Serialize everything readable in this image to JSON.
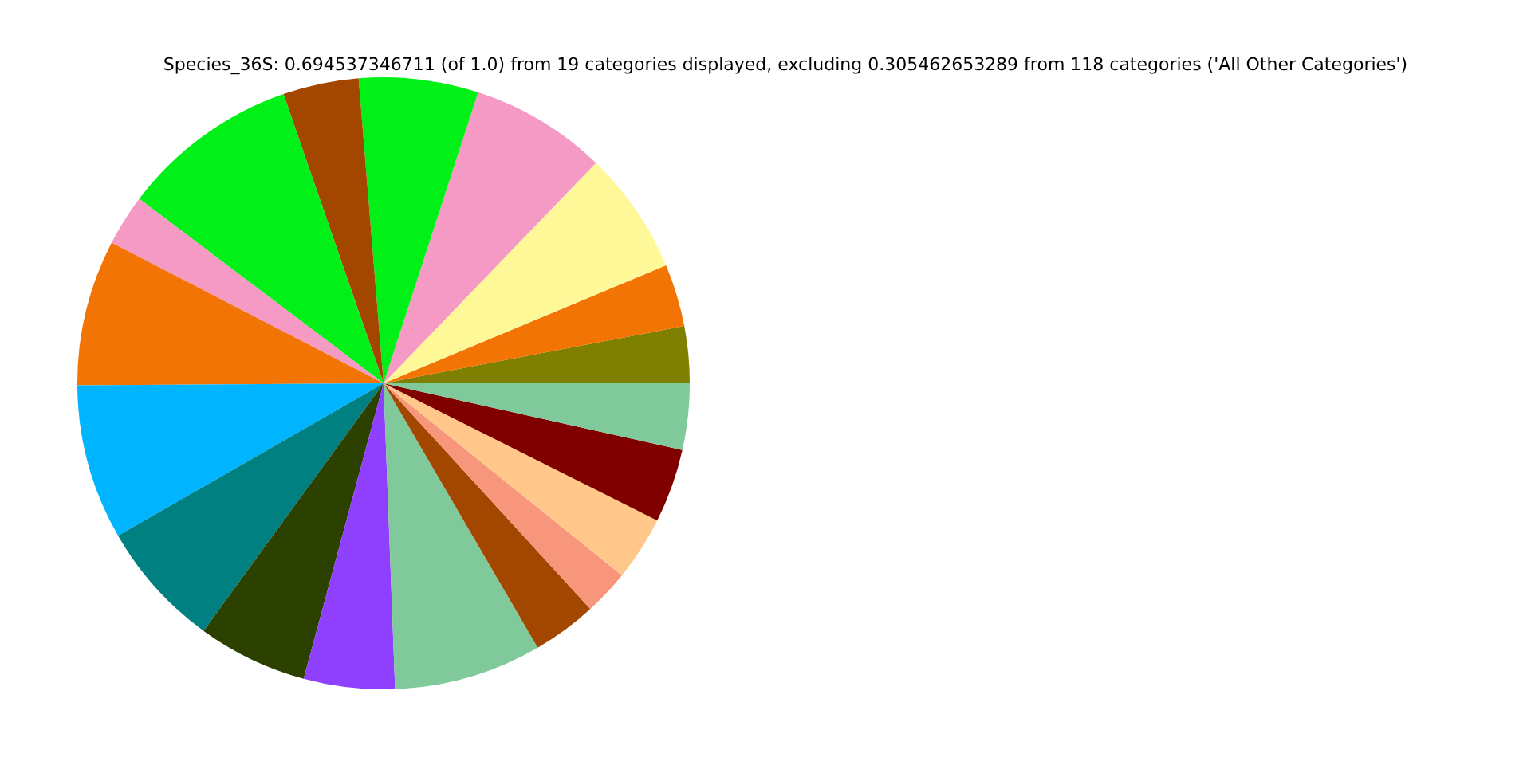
{
  "chart_data": {
    "type": "pie",
    "title": "Species_36S: 0.694537346711 (of 1.0) from 19 categories displayed, excluding 0.305462653289 from 118 categories ('All Other Categories')",
    "categories": [
      null,
      null,
      null,
      null,
      null,
      null,
      null,
      null,
      null,
      null,
      null,
      null,
      null,
      null,
      null,
      null,
      null,
      null,
      null
    ],
    "values": [
      3.0,
      3.3,
      6.5,
      7.2,
      6.3,
      4.0,
      9.4,
      2.7,
      7.7,
      8.2,
      6.7,
      5.8,
      4.8,
      7.8,
      3.4,
      2.4,
      3.4,
      3.9,
      3.5
    ],
    "colors": [
      "#808000",
      "#f27405",
      "#fff899",
      "#f49ac4",
      "#00f018",
      "#a34700",
      "#00f018",
      "#f49ac4",
      "#f27405",
      "#00b4ff",
      "#008080",
      "#2c4000",
      "#8f40ff",
      "#80c99b",
      "#a34700",
      "#f7967a",
      "#ffc88a",
      "#800000",
      "#80c99b"
    ]
  }
}
